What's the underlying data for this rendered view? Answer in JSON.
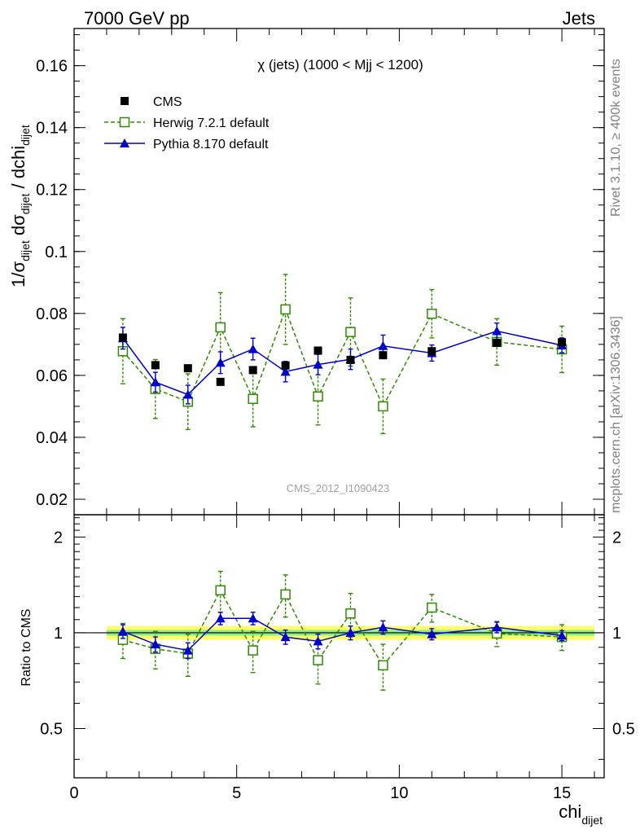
{
  "header": {
    "left": "7000 GeV pp",
    "right": "Jets"
  },
  "side_labels": {
    "top": "Rivet 3.1.10, ≥ 400k events",
    "bottom": "mcplots.cern.ch [arXiv:1306.3436]"
  },
  "colors": {
    "data": "#000000",
    "herwig": "#2e8b00",
    "pythia": "#0000cc",
    "band_inner": "#88ee88",
    "band_outer": "#ffff66"
  },
  "chart_data": [
    {
      "type": "scatter",
      "title": "χ (jets) (1000 < Mjj < 1200)",
      "watermark": "CMS_2012_I1090423",
      "ylabel": {
        "main": "1/σ",
        "sub1": "dijet",
        "mid": " dσ",
        "sub2": "dijet",
        "end": " / dchi",
        "sub3": "dijet"
      },
      "xlim": [
        0,
        16.3
      ],
      "ylim": [
        0.015,
        0.172
      ],
      "yticks": [
        0.02,
        0.04,
        0.06,
        0.08,
        0.1,
        0.12,
        0.14,
        0.16
      ],
      "ytick_labels": [
        "0.02",
        "0.04",
        "0.06",
        "0.08",
        "0.1",
        "0.12",
        "0.14",
        "0.16"
      ],
      "legend_position": "top-left",
      "series": [
        {
          "name": "CMS",
          "marker": "square",
          "x": [
            1.5,
            2.5,
            3.5,
            4.5,
            5.5,
            6.5,
            7.5,
            8.5,
            9.5,
            11,
            13,
            15
          ],
          "y": [
            0.0722,
            0.0633,
            0.0623,
            0.0579,
            0.0617,
            0.0632,
            0.068,
            0.065,
            0.0665,
            0.0678,
            0.0705,
            0.0707
          ],
          "err": [
            0.001,
            0.001,
            0.001,
            0.001,
            0.001,
            0.001,
            0.001,
            0.001,
            0.001,
            0.001,
            0.001,
            0.001
          ]
        },
        {
          "name": "Herwig 7.2.1 default",
          "marker": "open-square",
          "line": "dashed",
          "x": [
            1.5,
            2.5,
            3.5,
            4.5,
            5.5,
            6.5,
            7.5,
            8.5,
            9.5,
            11,
            13,
            15
          ],
          "y": [
            0.0678,
            0.0556,
            0.0515,
            0.0755,
            0.0524,
            0.0813,
            0.0532,
            0.074,
            0.05,
            0.0799,
            0.0708,
            0.0684
          ],
          "err": [
            0.0105,
            0.0095,
            0.009,
            0.0112,
            0.009,
            0.0113,
            0.0092,
            0.011,
            0.0088,
            0.0078,
            0.0075,
            0.0075
          ]
        },
        {
          "name": "Pythia 8.170 default",
          "marker": "triangle",
          "line": "solid",
          "x": [
            1.5,
            2.5,
            3.5,
            4.5,
            5.5,
            6.5,
            7.5,
            8.5,
            9.5,
            11,
            13,
            15
          ],
          "y": [
            0.072,
            0.0578,
            0.0538,
            0.0641,
            0.0685,
            0.0612,
            0.0635,
            0.0652,
            0.0695,
            0.0672,
            0.0743,
            0.0697
          ],
          "err": [
            0.0035,
            0.0032,
            0.003,
            0.0035,
            0.0035,
            0.0033,
            0.0033,
            0.0033,
            0.0035,
            0.0026,
            0.0026,
            0.0024
          ]
        }
      ]
    },
    {
      "type": "scatter",
      "ylabel": "Ratio to CMS",
      "xlabel": {
        "main": "chi",
        "sub": "dijet"
      },
      "xlim": [
        0,
        16.3
      ],
      "ylim": [
        0.35,
        2.35
      ],
      "ylog": true,
      "yticks": [
        0.5,
        1,
        2
      ],
      "ytick_labels": [
        "0.5",
        "1",
        "2"
      ],
      "xticks": [
        0,
        5,
        10,
        15
      ],
      "xtick_labels": [
        "0",
        "5",
        "10",
        "15"
      ],
      "band": {
        "xmin": 1,
        "xmax": 16,
        "inner": [
          0.98,
          1.02
        ],
        "outer": [
          0.95,
          1.05
        ]
      },
      "series": [
        {
          "name": "Herwig 7.2.1 default",
          "marker": "open-square",
          "line": "dashed",
          "x": [
            1.5,
            2.5,
            3.5,
            4.5,
            5.5,
            6.5,
            7.5,
            8.5,
            9.5,
            11,
            13,
            15
          ],
          "y": [
            0.95,
            0.89,
            0.86,
            1.36,
            0.88,
            1.32,
            0.82,
            1.15,
            0.79,
            1.2,
            0.995,
            0.97
          ],
          "err": [
            0.12,
            0.12,
            0.13,
            0.2,
            0.13,
            0.2,
            0.13,
            0.18,
            0.13,
            0.12,
            0.09,
            0.09
          ]
        },
        {
          "name": "Pythia 8.170 default",
          "marker": "triangle",
          "line": "solid",
          "x": [
            1.5,
            2.5,
            3.5,
            4.5,
            5.5,
            6.5,
            7.5,
            8.5,
            9.5,
            11,
            13,
            15
          ],
          "y": [
            1.01,
            0.92,
            0.88,
            1.11,
            1.11,
            0.97,
            0.94,
            1.0,
            1.04,
            0.99,
            1.04,
            0.98
          ],
          "err": [
            0.05,
            0.05,
            0.05,
            0.05,
            0.05,
            0.05,
            0.05,
            0.05,
            0.05,
            0.04,
            0.04,
            0.035
          ]
        }
      ]
    }
  ]
}
